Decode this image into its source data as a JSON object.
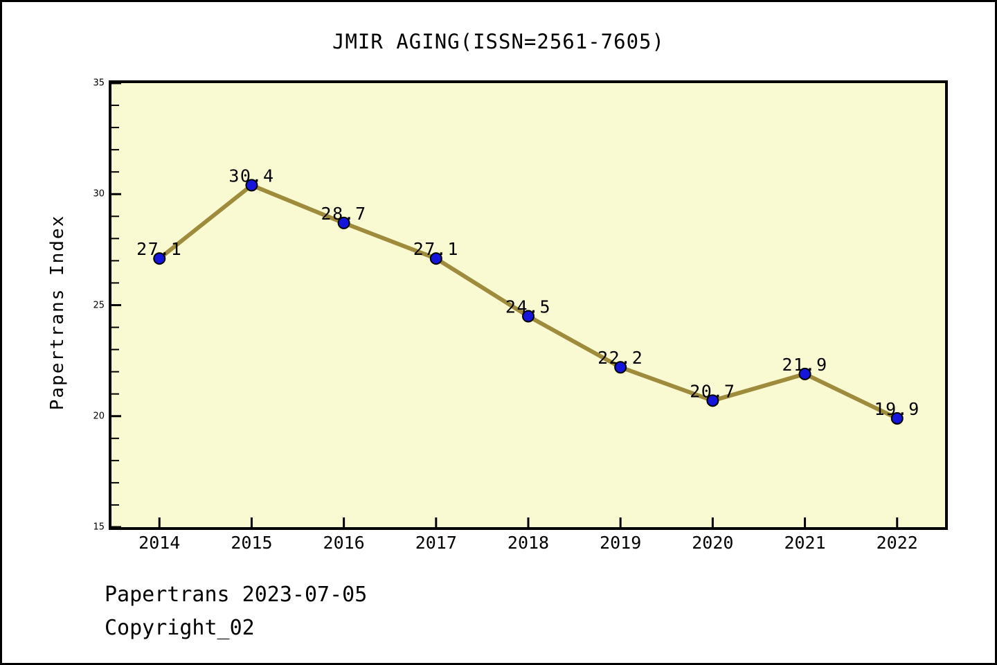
{
  "window": {
    "background": "#ffffff",
    "border_color": "#000000"
  },
  "chart_data": {
    "type": "line",
    "title": "JMIR AGING(ISSN=2561-7605)",
    "ylabel": "Papertrans Index",
    "xlabel": "",
    "x": [
      2014,
      2015,
      2016,
      2017,
      2018,
      2019,
      2020,
      2021,
      2022
    ],
    "x_tick_labels": [
      "2014",
      "2015",
      "2016",
      "2017",
      "2018",
      "2019",
      "2020",
      "2021",
      "2022"
    ],
    "series": [
      {
        "name": "Papertrans Index",
        "values": [
          27.1,
          30.4,
          28.7,
          27.1,
          24.5,
          22.2,
          20.7,
          21.9,
          19.9
        ],
        "point_labels": [
          "27.1",
          "30.4",
          "28.7",
          "27.1",
          "24.5",
          "22.2",
          "20.7",
          "21.9",
          "19.9"
        ],
        "line_color": "#9E8C3C",
        "marker_fill": "#1515DC",
        "marker_edge": "#000000"
      }
    ],
    "xlim": [
      2013.48,
      2022.52
    ],
    "ylim": [
      15,
      35
    ],
    "y_major_ticks": [
      15,
      20,
      25,
      30,
      35
    ],
    "y_major_tick_labels": [
      "15",
      "20",
      "25",
      "30",
      "35"
    ],
    "y_minor_step": 1,
    "grid": false,
    "legend": null,
    "plot_bg": "#FAFAD2",
    "axis_color": "#000000"
  },
  "footer": {
    "line1": "Papertrans 2023-07-05",
    "line2": "Copyright_02"
  }
}
